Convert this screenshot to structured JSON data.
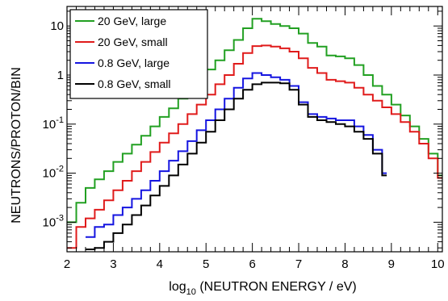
{
  "chart_data": {
    "type": "line",
    "step": true,
    "xlabel_prefix": "log",
    "xlabel_sub": "10",
    "xlabel_rest": " (NEUTRON ENERGY / eV)",
    "ylabel": "NEUTRONS/PROTON/BIN",
    "xlim": [
      2,
      10.1
    ],
    "ylim": [
      0.00025,
      25
    ],
    "y_scale": "log",
    "grid": false,
    "legend_position": "top-left",
    "x_ticks": [
      "2",
      "3",
      "4",
      "5",
      "6",
      "7",
      "8",
      "9",
      "10"
    ],
    "y_ticks": [
      {
        "base": "10",
        "exp": "-3",
        "value": 0.001
      },
      {
        "base": "10",
        "exp": "-2",
        "value": 0.01
      },
      {
        "base": "10",
        "exp": "-1",
        "value": 0.1
      },
      {
        "base": "1",
        "exp": "",
        "value": 1
      },
      {
        "base": "10",
        "exp": "",
        "value": 10
      }
    ],
    "series": [
      {
        "name": "20 GeV, large",
        "color": "#22a022",
        "x": [
          2.0,
          2.2,
          2.4,
          2.6,
          2.8,
          3.0,
          3.2,
          3.4,
          3.6,
          3.8,
          4.0,
          4.2,
          4.4,
          4.6,
          4.8,
          5.0,
          5.2,
          5.4,
          5.6,
          5.8,
          6.0,
          6.2,
          6.4,
          6.6,
          6.8,
          7.0,
          7.2,
          7.4,
          7.6,
          7.8,
          8.0,
          8.2,
          8.4,
          8.6,
          8.8,
          9.0,
          9.2,
          9.4,
          9.6,
          9.8,
          10.0,
          10.1
        ],
        "y": [
          0.001,
          0.0025,
          0.005,
          0.0075,
          0.011,
          0.017,
          0.025,
          0.038,
          0.058,
          0.09,
          0.14,
          0.21,
          0.33,
          0.55,
          0.85,
          1.3,
          2.0,
          3.2,
          5.2,
          9.0,
          14.0,
          12.5,
          11.0,
          10.0,
          9.0,
          7.0,
          4.5,
          3.8,
          2.5,
          2.4,
          2.2,
          1.6,
          1.0,
          0.6,
          0.4,
          0.25,
          0.15,
          0.09,
          0.05,
          0.025,
          0.009,
          0.004
        ]
      },
      {
        "name": "20 GeV, small",
        "color": "#e01b1b",
        "x": [
          2.0,
          2.2,
          2.4,
          2.6,
          2.8,
          3.0,
          3.2,
          3.4,
          3.6,
          3.8,
          4.0,
          4.2,
          4.4,
          4.6,
          4.8,
          5.0,
          5.2,
          5.4,
          5.6,
          5.8,
          6.0,
          6.2,
          6.4,
          6.6,
          6.8,
          7.0,
          7.2,
          7.4,
          7.6,
          7.8,
          8.0,
          8.2,
          8.4,
          8.6,
          8.8,
          9.0,
          9.2,
          9.4,
          9.6,
          9.8,
          10.0,
          10.1
        ],
        "y": [
          0.0003,
          0.0008,
          0.0012,
          0.0018,
          0.0028,
          0.0045,
          0.007,
          0.011,
          0.017,
          0.027,
          0.042,
          0.065,
          0.1,
          0.16,
          0.25,
          0.4,
          0.65,
          1.0,
          1.7,
          2.8,
          3.9,
          4.0,
          3.8,
          3.5,
          3.0,
          2.2,
          1.4,
          1.1,
          0.8,
          0.75,
          0.7,
          0.55,
          0.4,
          0.3,
          0.22,
          0.16,
          0.11,
          0.07,
          0.04,
          0.02,
          0.008,
          0.0045
        ]
      },
      {
        "name": "0.8 GeV, large",
        "color": "#1515e0",
        "x": [
          2.4,
          2.6,
          2.8,
          3.0,
          3.2,
          3.4,
          3.6,
          3.8,
          4.0,
          4.2,
          4.4,
          4.6,
          4.8,
          5.0,
          5.2,
          5.4,
          5.6,
          5.8,
          6.0,
          6.2,
          6.4,
          6.6,
          6.8,
          7.0,
          7.2,
          7.4,
          7.6,
          7.8,
          8.0,
          8.2,
          8.4,
          8.6,
          8.8,
          8.9
        ],
        "y": [
          0.0005,
          0.0008,
          0.0009,
          0.0014,
          0.002,
          0.003,
          0.0045,
          0.007,
          0.011,
          0.018,
          0.028,
          0.045,
          0.075,
          0.12,
          0.2,
          0.33,
          0.55,
          0.85,
          1.1,
          1.0,
          0.9,
          0.8,
          0.6,
          0.28,
          0.16,
          0.14,
          0.13,
          0.12,
          0.12,
          0.09,
          0.06,
          0.03,
          0.01,
          0.0003
        ]
      },
      {
        "name": "0.8 GeV, small",
        "color": "#000000",
        "x": [
          2.4,
          2.6,
          2.8,
          3.0,
          3.2,
          3.4,
          3.6,
          3.8,
          4.0,
          4.2,
          4.4,
          4.6,
          4.8,
          5.0,
          5.2,
          5.4,
          5.6,
          5.8,
          6.0,
          6.2,
          6.4,
          6.6,
          6.8,
          7.0,
          7.2,
          7.4,
          7.6,
          7.8,
          8.0,
          8.2,
          8.4,
          8.6,
          8.8,
          8.9
        ],
        "y": [
          0.00028,
          0.0003,
          0.0004,
          0.0006,
          0.0009,
          0.0014,
          0.0022,
          0.0035,
          0.0055,
          0.009,
          0.015,
          0.025,
          0.042,
          0.07,
          0.12,
          0.2,
          0.33,
          0.5,
          0.65,
          0.7,
          0.7,
          0.68,
          0.5,
          0.25,
          0.14,
          0.12,
          0.11,
          0.1,
          0.09,
          0.07,
          0.05,
          0.025,
          0.009,
          0.0003
        ]
      }
    ]
  }
}
